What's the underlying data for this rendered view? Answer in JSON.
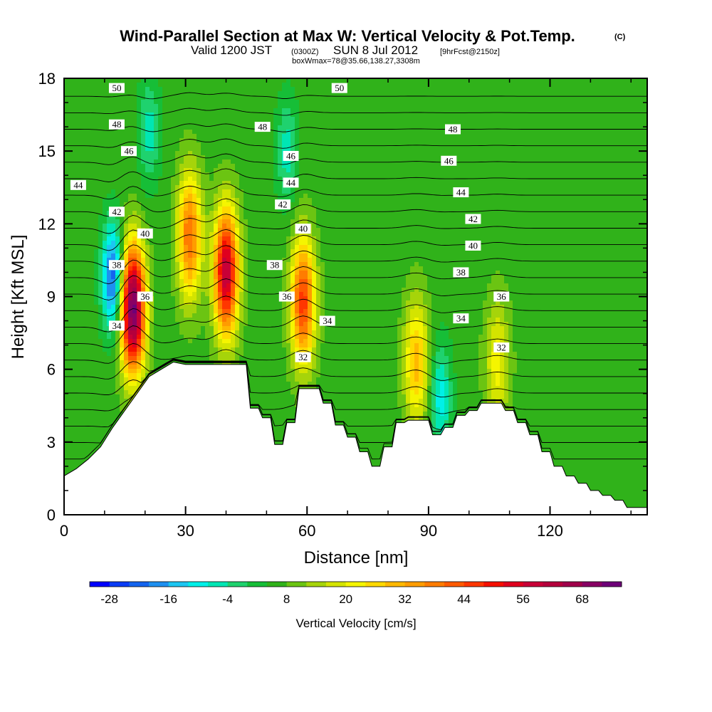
{
  "chart_data": {
    "type": "heatmap",
    "title": "Wind-Parallel Section at Max W: Vertical Velocity & Pot.Temp.",
    "title_mark": "(C)",
    "subtitle": {
      "prefix": "Valid 1200 JST",
      "utc": "(0300Z)",
      "date": "SUN 8 Jul 2012",
      "forecast": "[9hrFcst@2150z]"
    },
    "box_info": "boxWmax=78@35.66,138.27,3308m",
    "xlabel": "Distance [nm]",
    "ylabel": "Height [Kft MSL]",
    "xlim": [
      0,
      144
    ],
    "ylim": [
      0,
      18
    ],
    "x_ticks": [
      0,
      30,
      60,
      90,
      120
    ],
    "y_ticks": [
      0,
      3,
      6,
      9,
      12,
      15,
      18
    ],
    "colorbar": {
      "label": "Vertical Velocity [cm/s]",
      "min": -32,
      "max": 76,
      "step": 4,
      "tick_labels": [
        -28,
        -16,
        -4,
        8,
        20,
        32,
        44,
        56,
        68
      ]
    },
    "terrain": {
      "x": [
        0,
        3,
        6,
        9,
        12,
        15,
        18,
        21,
        24,
        27,
        30,
        33,
        36,
        39,
        42,
        45,
        46,
        48,
        49,
        51,
        52,
        54,
        55,
        57,
        58,
        60,
        61,
        63,
        64,
        66,
        67,
        69,
        70,
        72,
        73,
        75,
        76,
        78,
        79,
        81,
        82,
        84,
        85,
        87,
        88,
        90,
        91,
        93,
        94,
        96,
        97,
        99,
        100,
        102,
        103,
        105,
        106,
        108,
        109,
        111,
        112,
        114,
        115,
        117,
        118,
        120,
        121,
        123,
        124,
        126,
        127,
        129,
        130,
        132,
        133,
        135,
        136,
        138,
        139,
        141,
        142,
        144
      ],
      "height_kft": [
        1.6,
        1.9,
        2.3,
        2.8,
        3.6,
        4.3,
        5.0,
        5.7,
        6.0,
        6.3,
        6.2,
        6.2,
        6.2,
        6.2,
        6.2,
        6.2,
        4.4,
        4.4,
        4.0,
        4.0,
        2.9,
        2.9,
        3.8,
        3.8,
        5.2,
        5.2,
        5.2,
        5.2,
        4.6,
        4.6,
        3.7,
        3.7,
        3.2,
        3.2,
        2.6,
        2.6,
        2.0,
        2.0,
        2.8,
        2.8,
        3.8,
        3.8,
        3.9,
        3.9,
        3.9,
        3.9,
        3.3,
        3.3,
        3.6,
        3.6,
        4.1,
        4.1,
        4.3,
        4.3,
        4.6,
        4.6,
        4.6,
        4.6,
        4.3,
        4.3,
        3.8,
        3.8,
        3.3,
        3.3,
        2.6,
        2.6,
        2.0,
        2.0,
        1.6,
        1.6,
        1.3,
        1.3,
        1.0,
        1.0,
        0.8,
        0.8,
        0.6,
        0.6,
        0.3,
        0.3,
        0.3,
        0.3
      ]
    },
    "updraft_cores": [
      {
        "x_nm": 17,
        "z_kft": 8.5,
        "w_cm_s": 74
      },
      {
        "x_nm": 31,
        "z_kft": 11.5,
        "w_cm_s": 40
      },
      {
        "x_nm": 40,
        "z_kft": 10.0,
        "w_cm_s": 60
      },
      {
        "x_nm": 59,
        "z_kft": 8.8,
        "w_cm_s": 46
      },
      {
        "x_nm": 87,
        "z_kft": 6.3,
        "w_cm_s": 30
      },
      {
        "x_nm": 107,
        "z_kft": 6.3,
        "w_cm_s": 22
      }
    ],
    "downdraft_cores": [
      {
        "x_nm": 12,
        "z_kft": 9.8,
        "w_cm_s": -24
      },
      {
        "x_nm": 21,
        "z_kft": 15.8,
        "w_cm_s": -6
      },
      {
        "x_nm": 55,
        "z_kft": 15.0,
        "w_cm_s": -6
      },
      {
        "x_nm": 93,
        "z_kft": 4.8,
        "w_cm_s": -10
      }
    ],
    "theta_contours": {
      "unit": "C",
      "levels": [
        28,
        29,
        30,
        31,
        32,
        33,
        34,
        35,
        36,
        37,
        38,
        39,
        40,
        41,
        42,
        43,
        44,
        45,
        46,
        47,
        48,
        49,
        50
      ],
      "labels": [
        {
          "value": "50",
          "x_nm": 13,
          "z_kft": 17.6
        },
        {
          "value": "50",
          "x_nm": 68,
          "z_kft": 17.6
        },
        {
          "value": "48",
          "x_nm": 13,
          "z_kft": 16.1
        },
        {
          "value": "48",
          "x_nm": 49,
          "z_kft": 16.0
        },
        {
          "value": "48",
          "x_nm": 96,
          "z_kft": 15.9
        },
        {
          "value": "46",
          "x_nm": 16,
          "z_kft": 15.0
        },
        {
          "value": "46",
          "x_nm": 56,
          "z_kft": 14.8
        },
        {
          "value": "46",
          "x_nm": 95,
          "z_kft": 14.6
        },
        {
          "value": "44",
          "x_nm": 3.5,
          "z_kft": 13.6
        },
        {
          "value": "44",
          "x_nm": 56,
          "z_kft": 13.7
        },
        {
          "value": "44",
          "x_nm": 98,
          "z_kft": 13.3
        },
        {
          "value": "42",
          "x_nm": 13,
          "z_kft": 12.5
        },
        {
          "value": "42",
          "x_nm": 54,
          "z_kft": 12.8
        },
        {
          "value": "42",
          "x_nm": 101,
          "z_kft": 12.2
        },
        {
          "value": "40",
          "x_nm": 20,
          "z_kft": 11.6
        },
        {
          "value": "40",
          "x_nm": 59,
          "z_kft": 11.8
        },
        {
          "value": "40",
          "x_nm": 101,
          "z_kft": 11.1
        },
        {
          "value": "38",
          "x_nm": 13,
          "z_kft": 10.3
        },
        {
          "value": "38",
          "x_nm": 52,
          "z_kft": 10.3
        },
        {
          "value": "38",
          "x_nm": 98,
          "z_kft": 10.0
        },
        {
          "value": "36",
          "x_nm": 20,
          "z_kft": 9.0
        },
        {
          "value": "36",
          "x_nm": 55,
          "z_kft": 9.0
        },
        {
          "value": "36",
          "x_nm": 108,
          "z_kft": 9.0
        },
        {
          "value": "34",
          "x_nm": 13,
          "z_kft": 7.8
        },
        {
          "value": "34",
          "x_nm": 65,
          "z_kft": 8.0
        },
        {
          "value": "34",
          "x_nm": 98,
          "z_kft": 8.1
        },
        {
          "value": "32",
          "x_nm": 59,
          "z_kft": 6.5
        },
        {
          "value": "32",
          "x_nm": 108,
          "z_kft": 6.9
        }
      ]
    }
  }
}
